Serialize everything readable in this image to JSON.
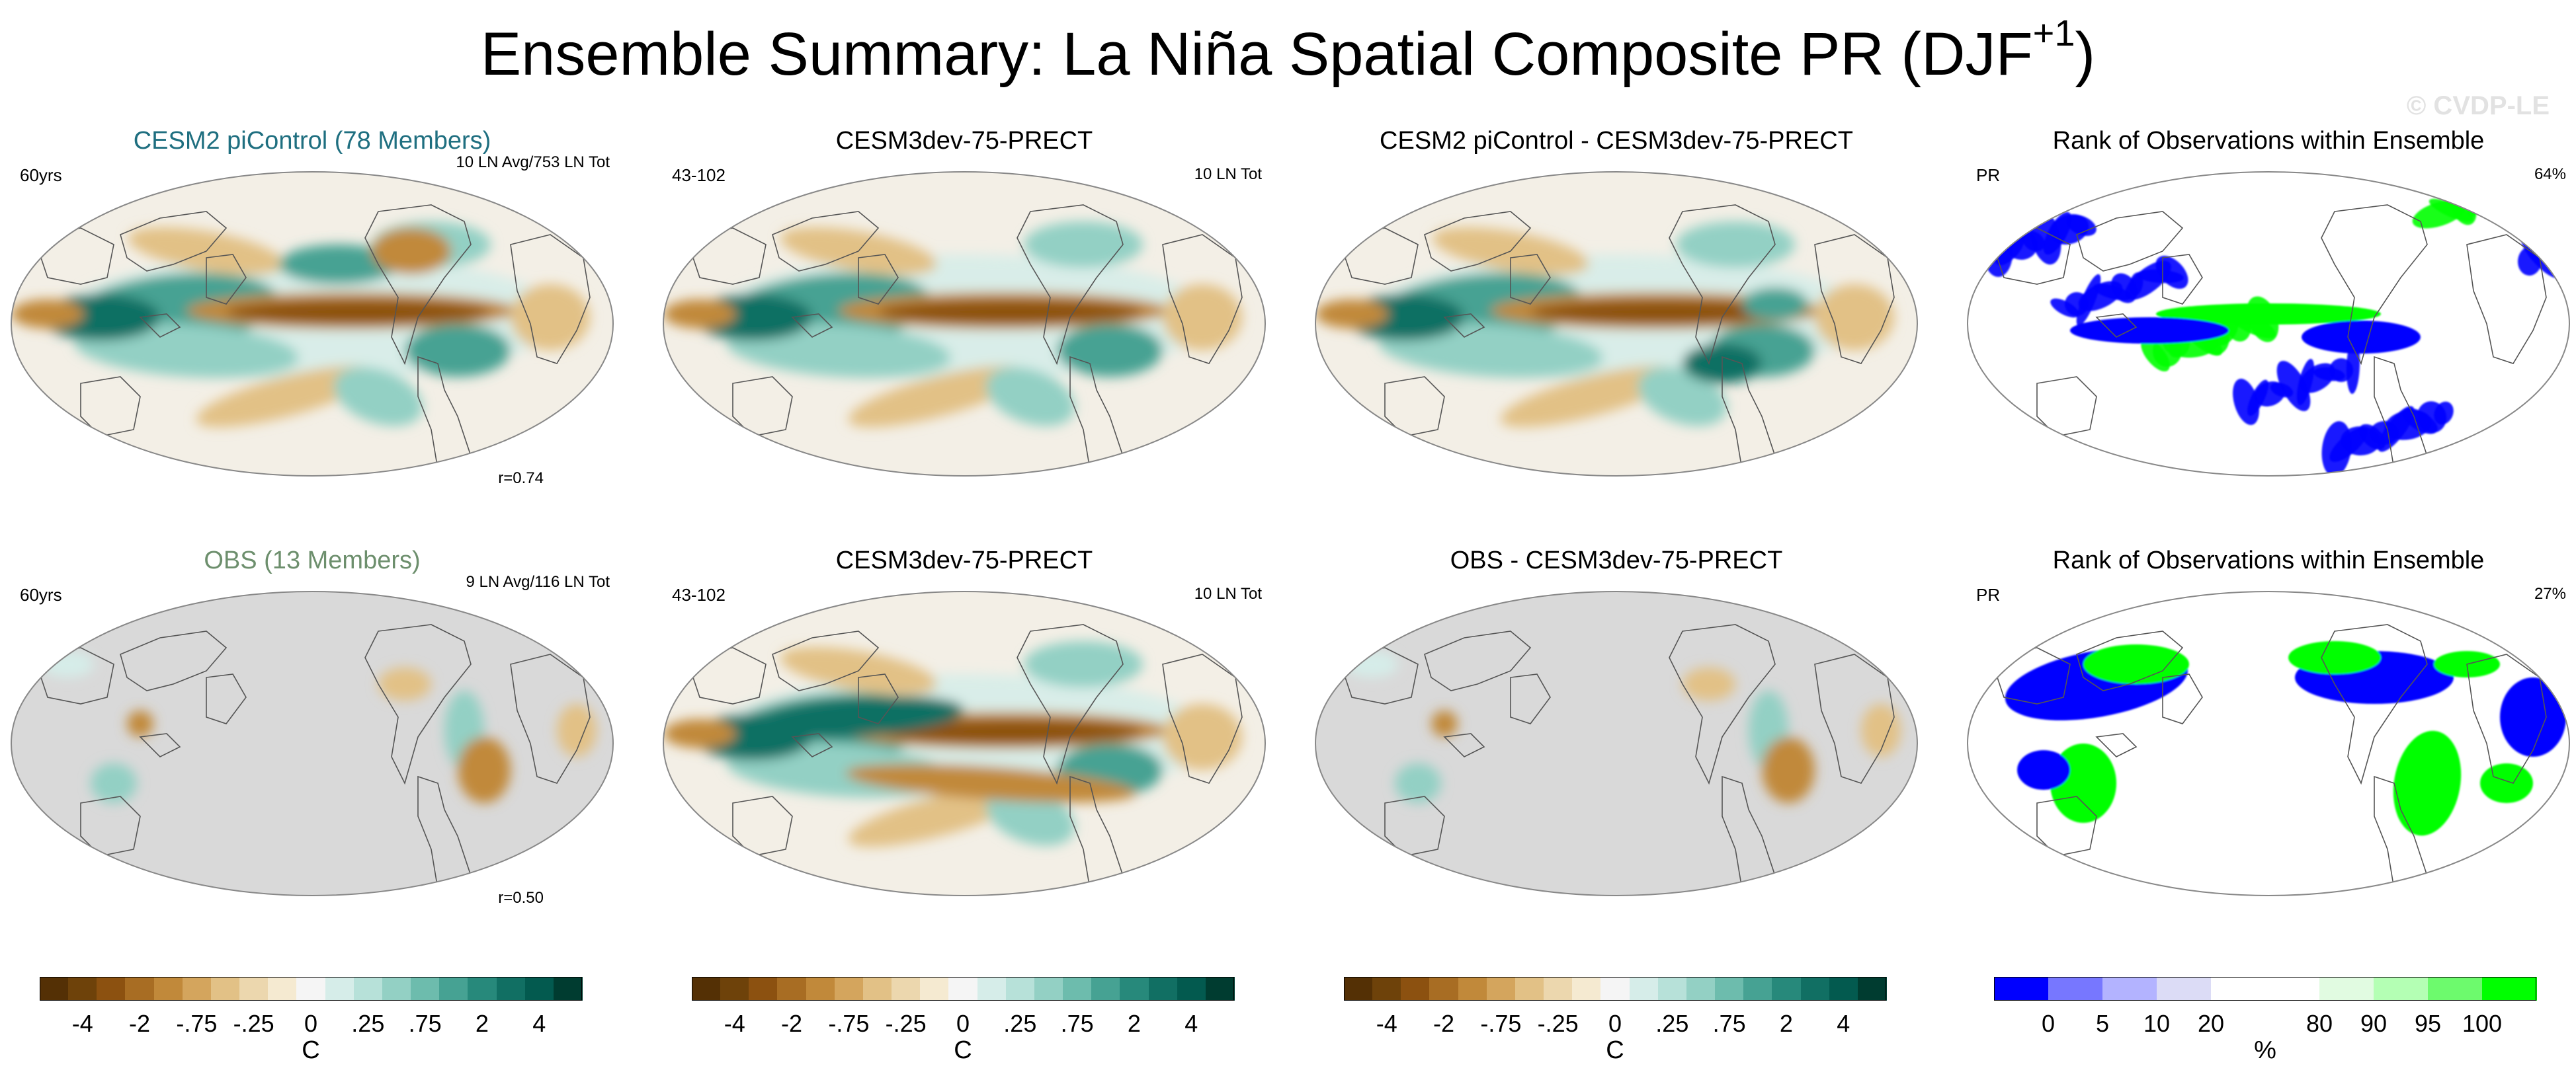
{
  "title": {
    "text": "Ensemble Summary: La Niña Spatial Composite PR (DJF",
    "superscript": "+1",
    "close": ")"
  },
  "watermark": "© CVDP-LE",
  "panels": [
    {
      "id": "r1c1",
      "title": "CESM2 piControl (78 Members)",
      "title_color": "#1f6f80",
      "left_tag": "60yrs",
      "right_tag": "10 LN Avg/753 LN Tot",
      "corr": "r=0.74",
      "style": "ens"
    },
    {
      "id": "r1c2",
      "title": "CESM3dev-75-PRECT",
      "title_color": "#000000",
      "left_tag": "43-102",
      "right_tag": "10 LN Tot",
      "corr": "",
      "style": "single"
    },
    {
      "id": "r1c3",
      "title": "CESM2 piControl - CESM3dev-75-PRECT",
      "title_color": "#000000",
      "left_tag": "",
      "right_tag": "",
      "corr": "",
      "style": "diff"
    },
    {
      "id": "r1c4",
      "title": "Rank of Observations within Ensemble",
      "title_color": "#000000",
      "left_tag": "PR",
      "right_tag": "64%",
      "corr": "",
      "style": "rank"
    },
    {
      "id": "r2c1",
      "title": "OBS (13 Members)",
      "title_color": "#6d8f6d",
      "left_tag": "60yrs",
      "right_tag": "9 LN Avg/116 LN Tot",
      "corr": "r=0.50",
      "style": "obs"
    },
    {
      "id": "r2c2",
      "title": "CESM3dev-75-PRECT",
      "title_color": "#000000",
      "left_tag": "43-102",
      "right_tag": "10 LN Tot",
      "corr": "",
      "style": "single2"
    },
    {
      "id": "r2c3",
      "title": "OBS - CESM3dev-75-PRECT",
      "title_color": "#000000",
      "left_tag": "",
      "right_tag": "",
      "corr": "",
      "style": "obsdiff"
    },
    {
      "id": "r2c4",
      "title": "Rank of Observations within Ensemble",
      "title_color": "#000000",
      "left_tag": "PR",
      "right_tag": "27%",
      "corr": "",
      "style": "rank2"
    }
  ],
  "colorbars": [
    {
      "id": "cb1",
      "unit": "C",
      "colors": [
        "#543005",
        "#6e420a",
        "#8c5110",
        "#a86d23",
        "#c1893a",
        "#d4a55d",
        "#e2c186",
        "#ecd7ae",
        "#f5ead1",
        "#f5f5f5",
        "#d6ede9",
        "#b7e1d9",
        "#93d0c4",
        "#6dbcad",
        "#46a293",
        "#27897b",
        "#116f63",
        "#035a4f",
        "#003c30"
      ],
      "ticks": [
        "-4",
        "-2",
        "-.75",
        "-.25",
        "0",
        ".25",
        ".75",
        "2",
        "4"
      ]
    },
    {
      "id": "cb2",
      "unit": "C",
      "colors": [
        "#543005",
        "#6e420a",
        "#8c5110",
        "#a86d23",
        "#c1893a",
        "#d4a55d",
        "#e2c186",
        "#ecd7ae",
        "#f5ead1",
        "#f5f5f5",
        "#d6ede9",
        "#b7e1d9",
        "#93d0c4",
        "#6dbcad",
        "#46a293",
        "#27897b",
        "#116f63",
        "#035a4f",
        "#003c30"
      ],
      "ticks": [
        "-4",
        "-2",
        "-.75",
        "-.25",
        "0",
        ".25",
        ".75",
        "2",
        "4"
      ]
    },
    {
      "id": "cb3",
      "unit": "C",
      "colors": [
        "#543005",
        "#6e420a",
        "#8c5110",
        "#a86d23",
        "#c1893a",
        "#d4a55d",
        "#e2c186",
        "#ecd7ae",
        "#f5ead1",
        "#f5f5f5",
        "#d6ede9",
        "#b7e1d9",
        "#93d0c4",
        "#6dbcad",
        "#46a293",
        "#27897b",
        "#116f63",
        "#035a4f",
        "#003c30"
      ],
      "ticks": [
        "-4",
        "-2",
        "-.75",
        "-.25",
        "0",
        ".25",
        ".75",
        "2",
        "4"
      ]
    },
    {
      "id": "cb4",
      "unit": "%",
      "colors": [
        "#0000ff",
        "#7777ff",
        "#b3b3ff",
        "#dcdcf6",
        "#ffffff",
        "#ffffff",
        "#e1fbe1",
        "#b4ffb4",
        "#6dfa6d",
        "#00ff00"
      ],
      "ticks": [
        "0",
        "5",
        "10",
        "20",
        "80",
        "90",
        "95",
        "100"
      ]
    }
  ]
}
